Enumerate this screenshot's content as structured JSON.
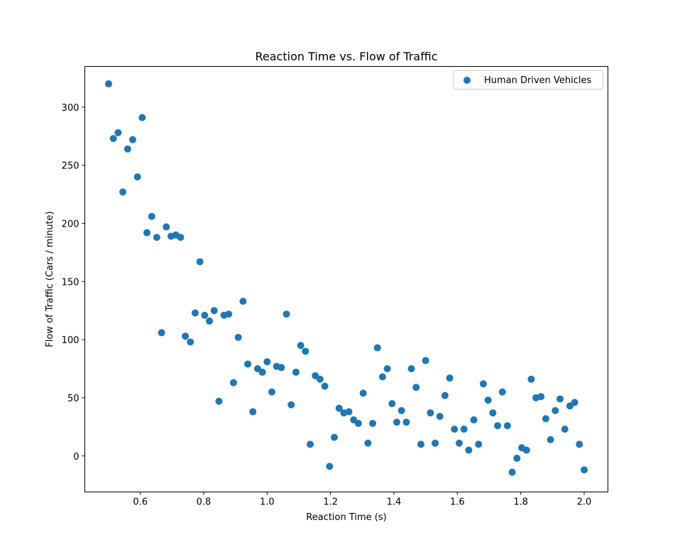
{
  "chart_data": {
    "type": "scatter",
    "title": "Reaction Time vs. Flow of Traffic",
    "xlabel": "Reaction Time (s)",
    "ylabel": "Flow of Traffic (Cars / minute)",
    "xlim": [
      0.425,
      2.075
    ],
    "ylim": [
      -31,
      335
    ],
    "xticks": [
      0.6,
      0.8,
      1.0,
      1.2,
      1.4,
      1.6,
      1.8,
      2.0
    ],
    "xtick_labels": [
      "0.6",
      "0.8",
      "1.0",
      "1.2",
      "1.4",
      "1.6",
      "1.8",
      "2.0"
    ],
    "yticks": [
      0,
      50,
      100,
      150,
      200,
      250,
      300
    ],
    "ytick_labels": [
      "0",
      "50",
      "100",
      "150",
      "200",
      "250",
      "300"
    ],
    "grid": false,
    "legend_position": "top-right",
    "colors": {
      "series": "#1f77b4",
      "axes": "#000000",
      "legend_border": "#cccccc"
    },
    "series": [
      {
        "name": "Human Driven Vehicles",
        "x": [
          0.5,
          0.515,
          0.53,
          0.545,
          0.56,
          0.576,
          0.591,
          0.606,
          0.621,
          0.636,
          0.652,
          0.667,
          0.682,
          0.697,
          0.712,
          0.727,
          0.742,
          0.758,
          0.773,
          0.788,
          0.803,
          0.818,
          0.833,
          0.848,
          0.864,
          0.879,
          0.894,
          0.909,
          0.924,
          0.939,
          0.955,
          0.97,
          0.985,
          1.0,
          1.015,
          1.03,
          1.045,
          1.061,
          1.076,
          1.091,
          1.106,
          1.121,
          1.136,
          1.152,
          1.167,
          1.182,
          1.197,
          1.212,
          1.227,
          1.242,
          1.258,
          1.273,
          1.288,
          1.303,
          1.318,
          1.333,
          1.348,
          1.364,
          1.379,
          1.394,
          1.409,
          1.424,
          1.439,
          1.455,
          1.47,
          1.485,
          1.5,
          1.515,
          1.53,
          1.545,
          1.561,
          1.576,
          1.591,
          1.606,
          1.621,
          1.636,
          1.652,
          1.667,
          1.682,
          1.697,
          1.712,
          1.727,
          1.742,
          1.758,
          1.773,
          1.788,
          1.803,
          1.818,
          1.833,
          1.848,
          1.864,
          1.879,
          1.894,
          1.909,
          1.924,
          1.939,
          1.955,
          1.97,
          1.985,
          2.0
        ],
        "y": [
          320,
          273,
          278,
          227,
          264,
          272,
          240,
          291,
          192,
          206,
          188,
          106,
          197,
          189,
          190,
          188,
          103,
          98,
          123,
          167,
          121,
          116,
          125,
          47,
          121,
          122,
          63,
          102,
          133,
          79,
          38,
          75,
          72,
          81,
          55,
          77,
          76,
          122,
          44,
          72,
          95,
          90,
          10,
          69,
          66,
          60,
          -9,
          16,
          41,
          37,
          38,
          31,
          28,
          54,
          11,
          28,
          93,
          68,
          75,
          45,
          29,
          39,
          29,
          75,
          59,
          10,
          82,
          37,
          11,
          34,
          52,
          67,
          23,
          11,
          23,
          5,
          31,
          10,
          62,
          48,
          37,
          26,
          55,
          26,
          -14,
          -2,
          7,
          5,
          66,
          50,
          51,
          32,
          14,
          39,
          49,
          23,
          43,
          46,
          10,
          -12
        ]
      }
    ]
  }
}
